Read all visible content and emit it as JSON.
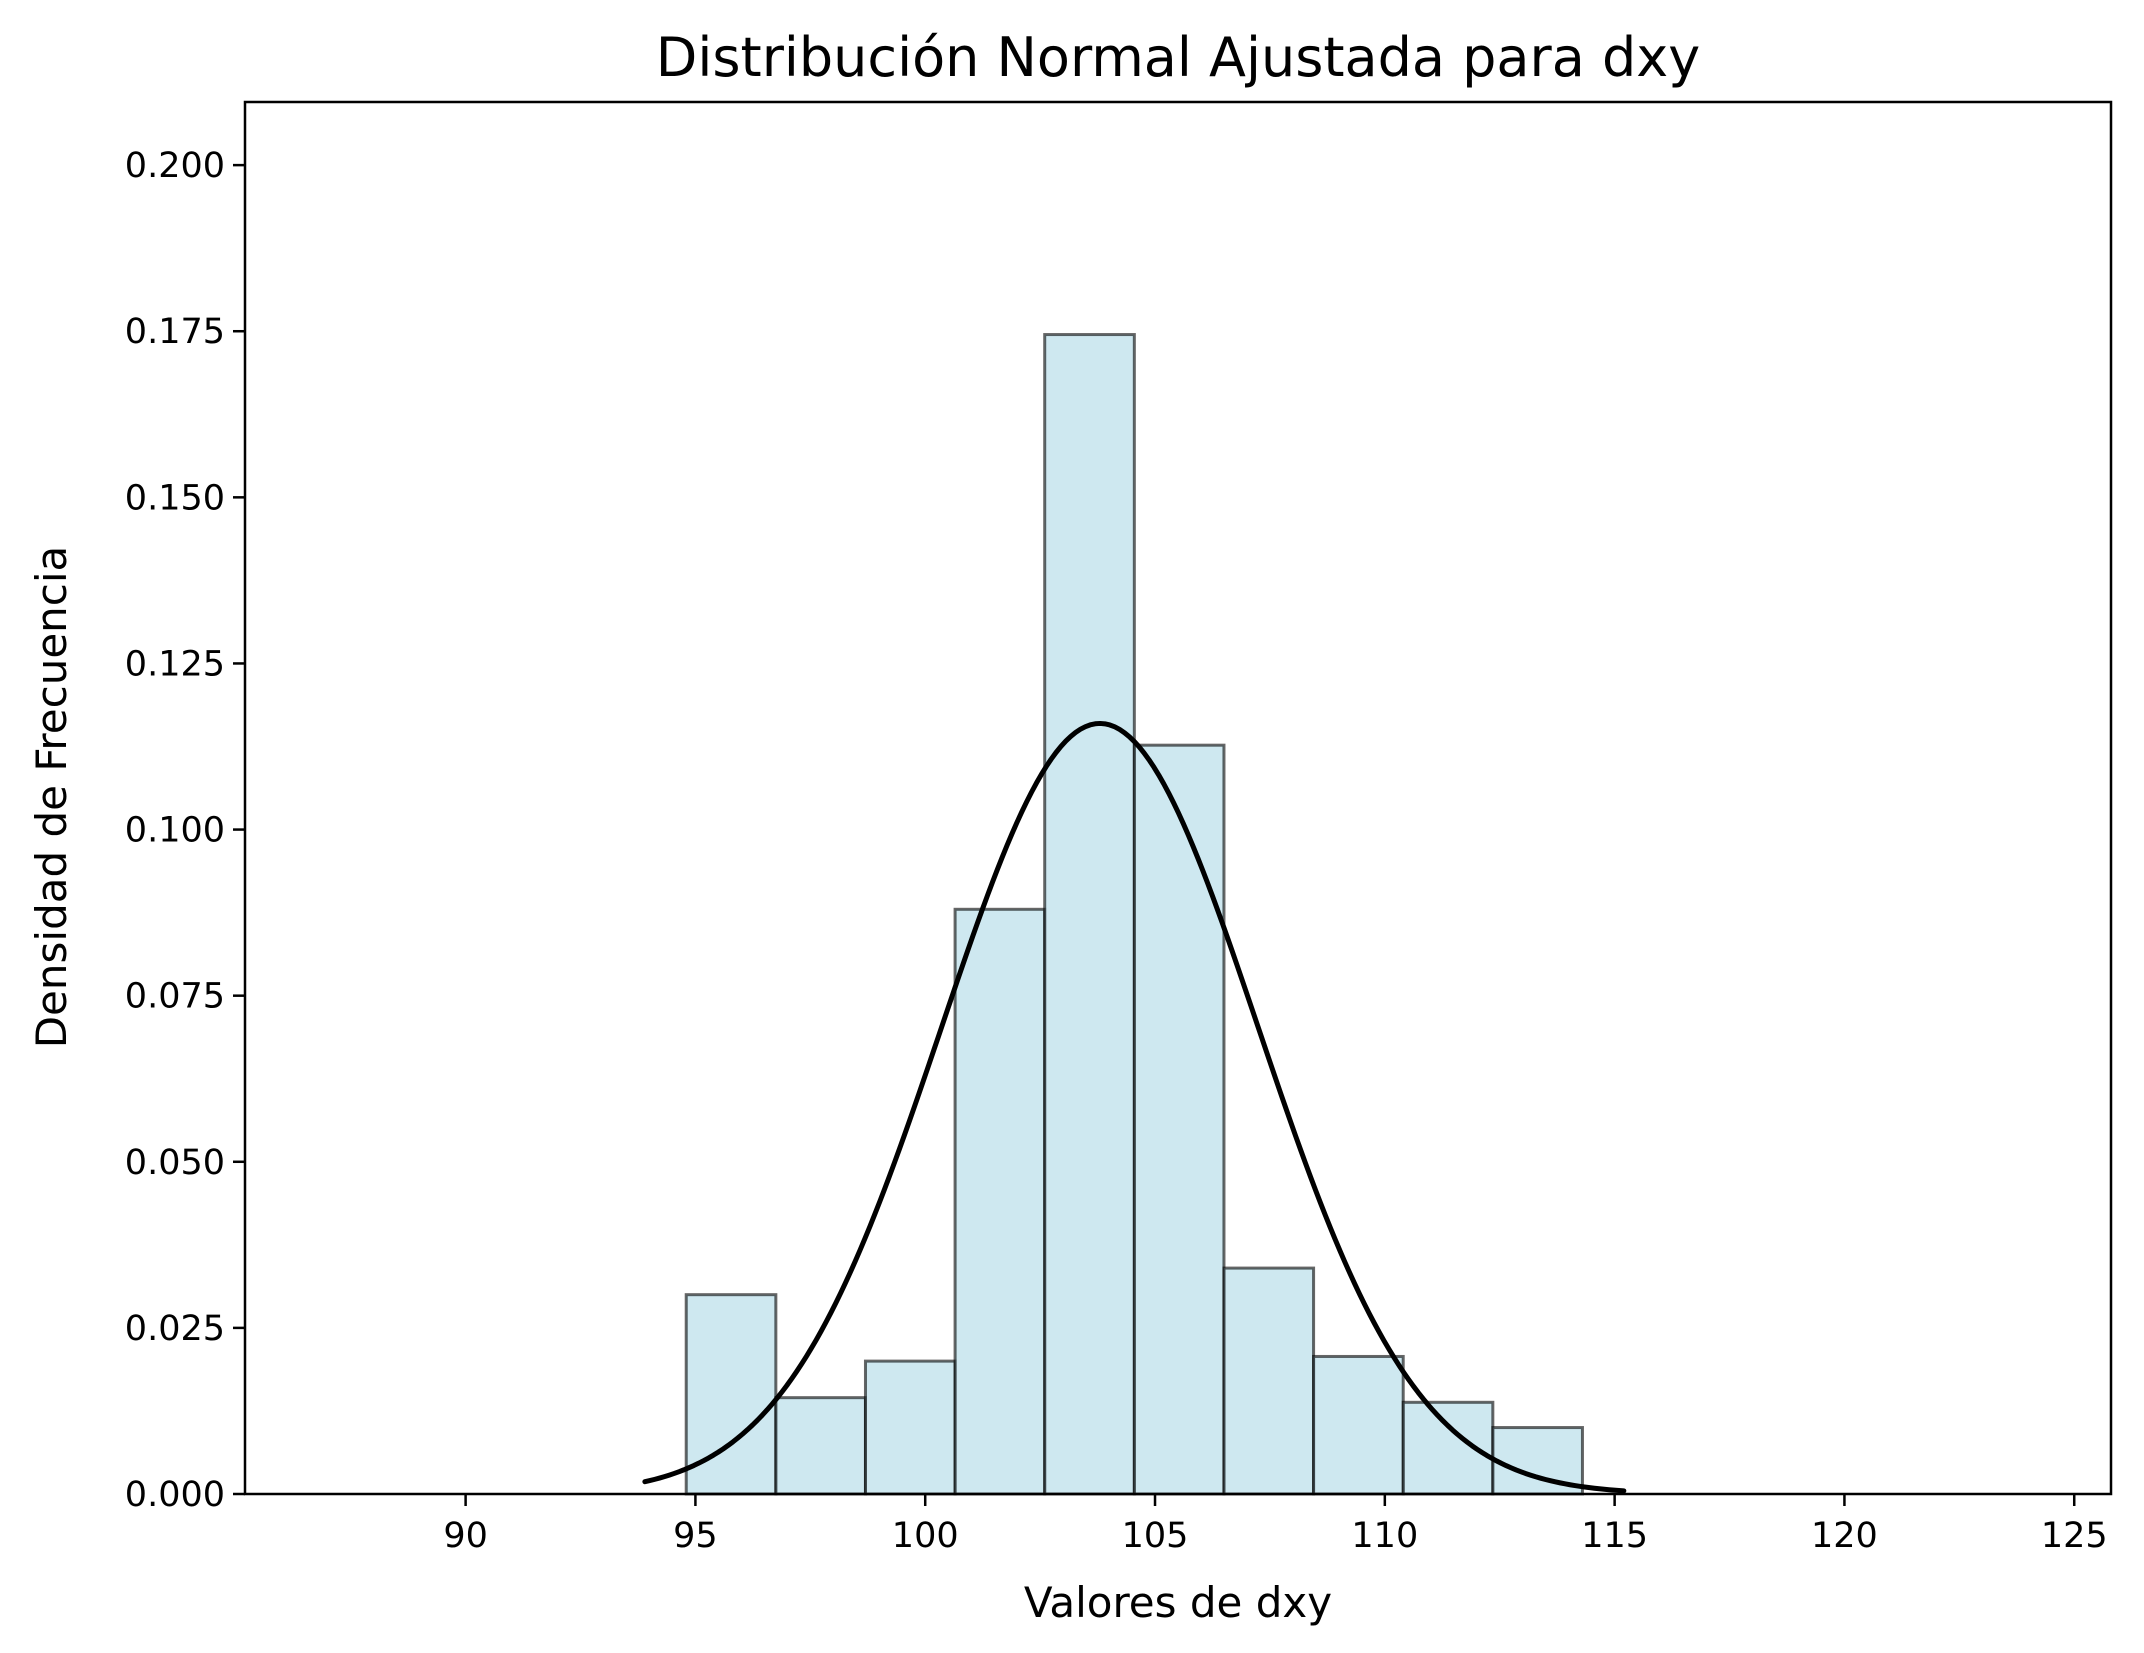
{
  "chart_data": {
    "type": "bar",
    "title": "Distribución Normal Ajustada para dxy",
    "xlabel": "Valores de dxy",
    "ylabel": "Densidad de Frecuencia",
    "xlim": [
      85.2,
      125.8
    ],
    "ylim": [
      0,
      0.2095
    ],
    "xticks": [
      90,
      95,
      100,
      105,
      110,
      115,
      120,
      125
    ],
    "xtick_labels": [
      "90",
      "95",
      "100",
      "105",
      "110",
      "115",
      "120",
      "125"
    ],
    "yticks": [
      0,
      0.025,
      0.05,
      0.075,
      0.1,
      0.125,
      0.15,
      0.175,
      0.2
    ],
    "ytick_labels": [
      "0.000",
      "0.025",
      "0.050",
      "0.075",
      "0.100",
      "0.125",
      "0.150",
      "0.175",
      "0.200"
    ],
    "grid": false,
    "histogram": {
      "bin_edges": [
        94.8,
        96.75,
        98.7,
        100.65,
        102.6,
        104.55,
        106.5,
        108.45,
        110.4,
        112.35,
        114.3
      ],
      "density": [
        0.03,
        0.0145,
        0.02,
        0.088,
        0.1745,
        0.1127,
        0.034,
        0.0207,
        0.0138,
        0.01
      ],
      "fill_color": "#add8e6",
      "edge_color": "#000000"
    },
    "series": [
      {
        "type": "line",
        "curve": "normal_pdf",
        "mean": 103.8,
        "std": 3.44,
        "x_range": [
          93.9,
          115.2
        ],
        "color": "#000000"
      }
    ]
  }
}
